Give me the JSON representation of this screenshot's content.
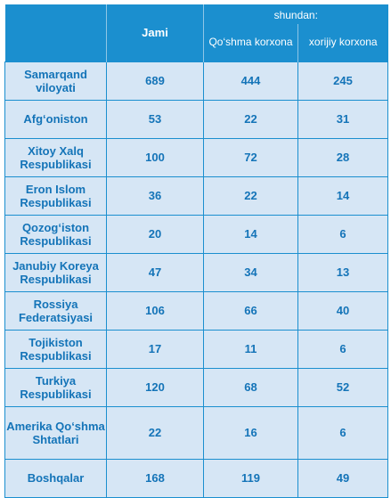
{
  "header": {
    "shundan": "shundan:",
    "jami": "Jami",
    "qoshma": "Qo‘shma korxona",
    "xorijiy": "xorijiy korxona"
  },
  "rows": [
    {
      "name": "Samarqand viloyati",
      "jami": "689",
      "qoshma": "444",
      "xorijiy": "245"
    },
    {
      "name": "Afg‘oniston",
      "jami": "53",
      "qoshma": "22",
      "xorijiy": "31"
    },
    {
      "name": "Xitoy Xalq Respublikasi",
      "jami": "100",
      "qoshma": "72",
      "xorijiy": "28"
    },
    {
      "name": "Eron Islom Respublikasi",
      "jami": "36",
      "qoshma": "22",
      "xorijiy": "14"
    },
    {
      "name": "Qozog‘iston Respublikasi",
      "jami": "20",
      "qoshma": "14",
      "xorijiy": "6"
    },
    {
      "name": "Janubiy Koreya Respublikasi",
      "jami": "47",
      "qoshma": "34",
      "xorijiy": "13"
    },
    {
      "name": "Rossiya Federatsiyasi",
      "jami": "106",
      "qoshma": "66",
      "xorijiy": "40"
    },
    {
      "name": "Tojikiston Respublikasi",
      "jami": "17",
      "qoshma": "11",
      "xorijiy": "6"
    },
    {
      "name": "Turkiya Respublikasi",
      "jami": "120",
      "qoshma": "68",
      "xorijiy": "52"
    },
    {
      "name": "Amerika Qo‘shma Shtatlari",
      "jami": "22",
      "qoshma": "16",
      "xorijiy": "6"
    },
    {
      "name": "Boshqalar",
      "jami": "168",
      "qoshma": "119",
      "xorijiy": "49"
    }
  ]
}
